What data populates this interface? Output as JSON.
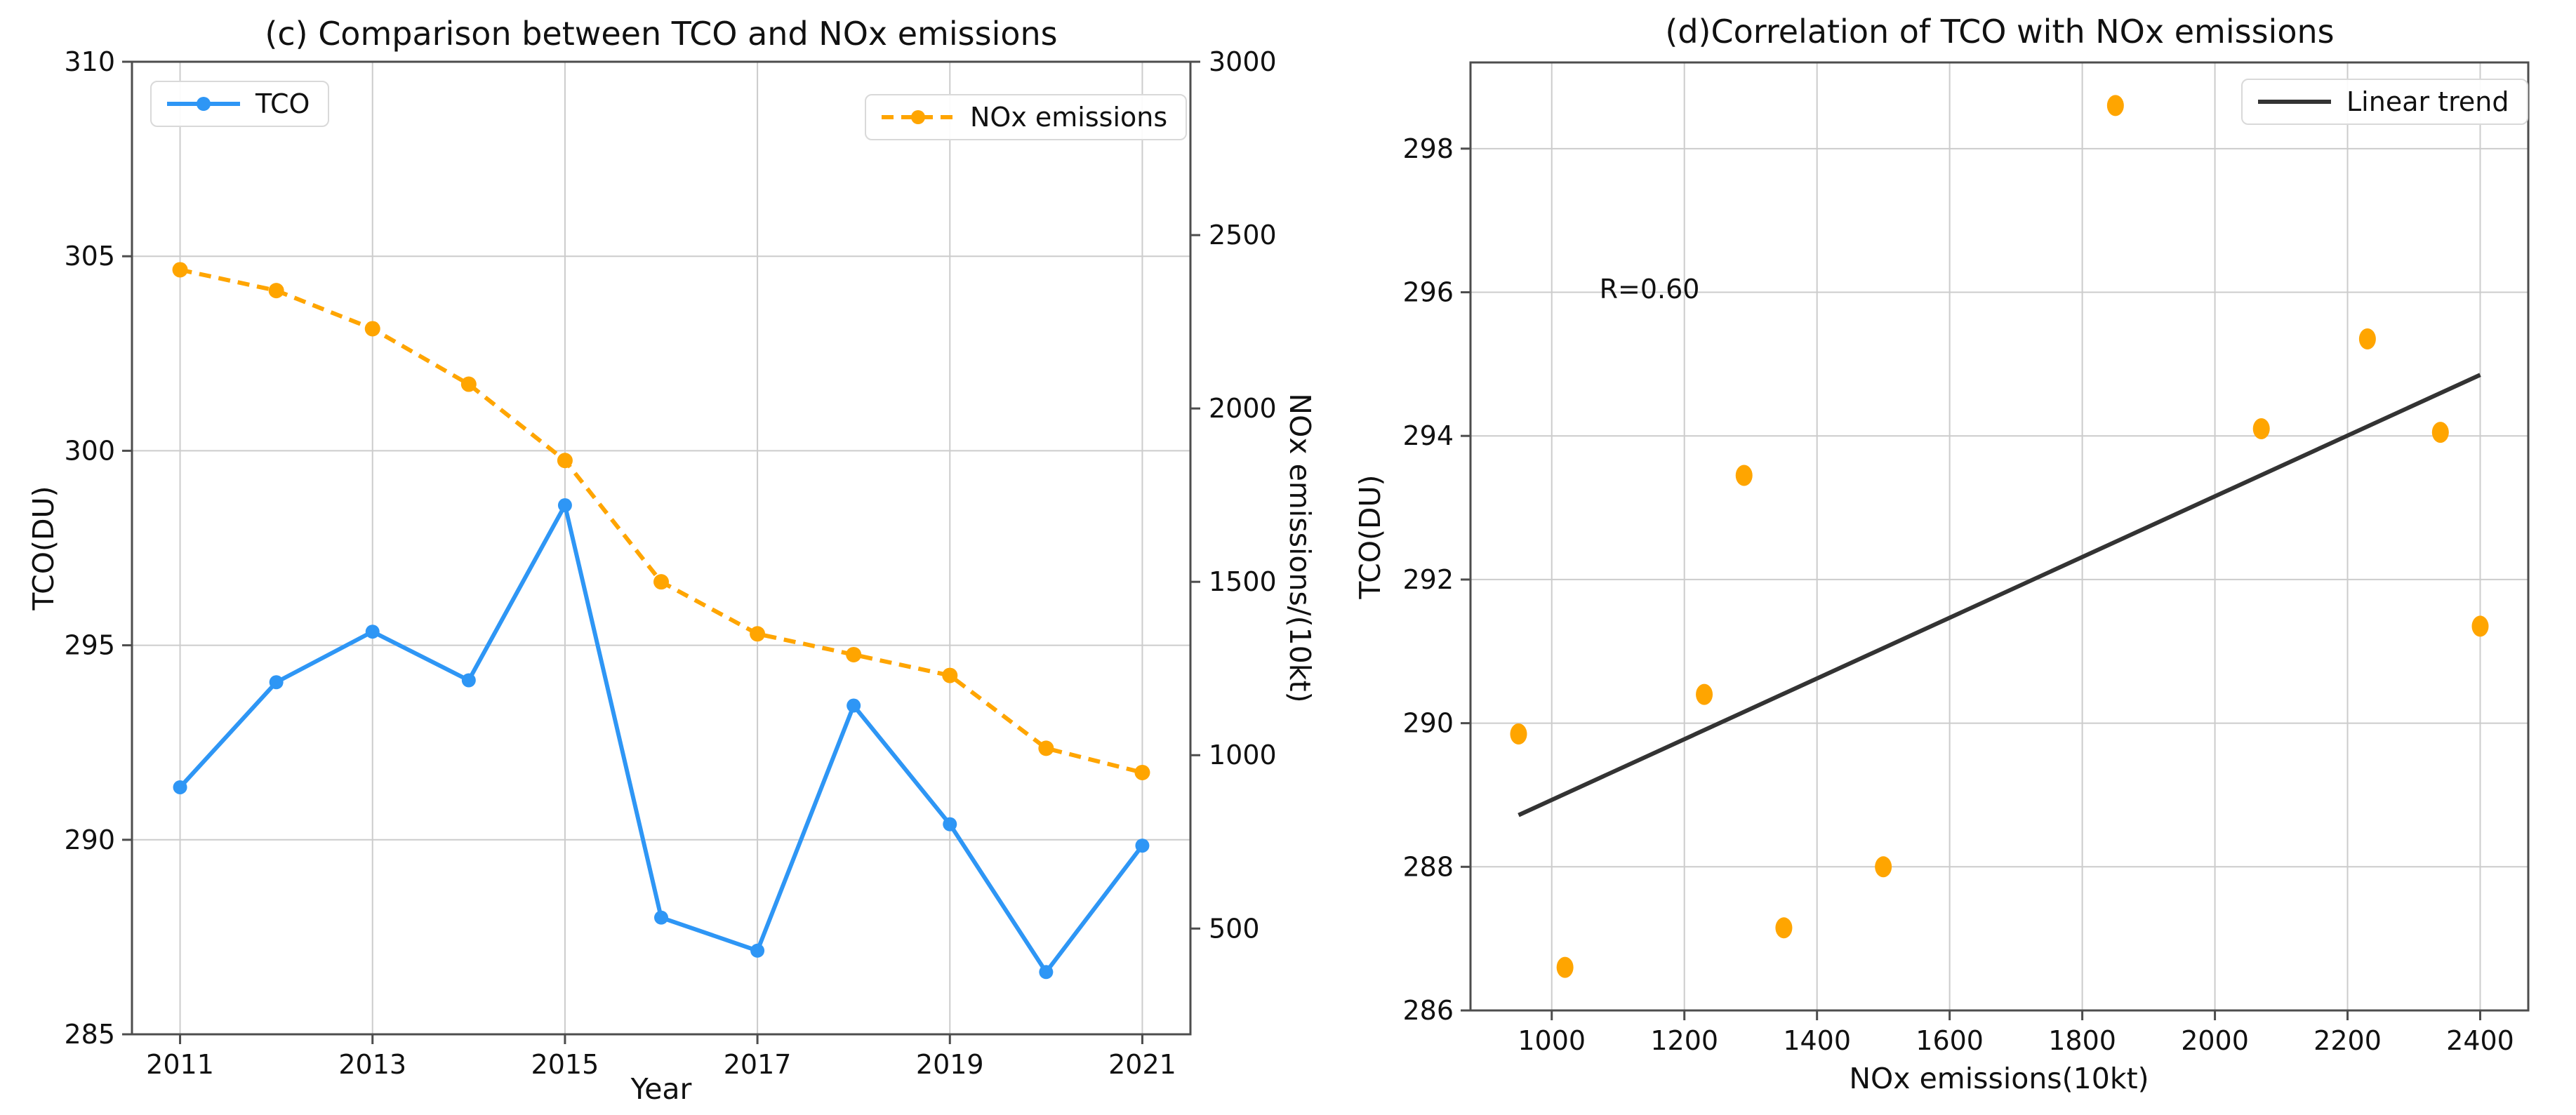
{
  "figure": {
    "background": "#ffffff",
    "colors": {
      "tco_blue": "#2E96F5",
      "nox_orange": "#FFA500",
      "trend_dark": "#333333",
      "grid_gray": "#cccccc",
      "spine_gray": "#4d4d4d",
      "text_black": "#111111"
    }
  },
  "chart_data": [
    {
      "id": "c",
      "type": "line",
      "title": "(c) Comparison between TCO and NOx emissions",
      "xlabel": "Year",
      "ylabel_left": "TCO(DU)",
      "ylabel_right": "NOx emissions/(10kt)",
      "x": [
        2011,
        2012,
        2013,
        2014,
        2015,
        2016,
        2017,
        2018,
        2019,
        2020,
        2021
      ],
      "series": [
        {
          "name": "TCO",
          "axis": "left",
          "style": "solid",
          "color_key": "tco_blue",
          "values": [
            291.35,
            294.05,
            295.35,
            294.1,
            298.6,
            288.0,
            287.15,
            293.45,
            290.4,
            286.6,
            289.85
          ]
        },
        {
          "name": "NOx emissions",
          "axis": "right",
          "style": "dashed",
          "color_key": "nox_orange",
          "values": [
            2400,
            2340,
            2230,
            2070,
            1850,
            1500,
            1350,
            1290,
            1230,
            1020,
            950
          ]
        }
      ],
      "xticks": [
        2011,
        2013,
        2015,
        2017,
        2019,
        2021
      ],
      "yticks_left": [
        285,
        290,
        295,
        300,
        305,
        310
      ],
      "yticks_right": [
        500,
        1000,
        1500,
        2000,
        2500,
        3000
      ],
      "xlim": [
        2010.5,
        2021.5
      ],
      "ylim_left": [
        285,
        310
      ],
      "ylim_right": [
        195,
        3000
      ],
      "grid": true,
      "legend_left": {
        "label": "TCO"
      },
      "legend_right": {
        "label": "NOx emissions"
      }
    },
    {
      "id": "d",
      "type": "scatter",
      "title": "(d)Correlation of TCO with NOx emissions",
      "xlabel": "NOx emissions(10kt)",
      "ylabel": "TCO(DU)",
      "points": [
        [
          2400,
          291.35
        ],
        [
          2340,
          294.05
        ],
        [
          2230,
          295.35
        ],
        [
          2070,
          294.1
        ],
        [
          1850,
          298.6
        ],
        [
          1500,
          288.0
        ],
        [
          1350,
          287.15
        ],
        [
          1290,
          293.45
        ],
        [
          1230,
          290.4
        ],
        [
          1020,
          286.6
        ],
        [
          950,
          289.85
        ]
      ],
      "trend": {
        "label": "Linear trend",
        "x1": 950,
        "y1": 288.72,
        "x2": 2400,
        "y2": 294.85
      },
      "annotation": "R=0.60",
      "xticks": [
        1000,
        1200,
        1400,
        1600,
        1800,
        2000,
        2200,
        2400
      ],
      "yticks": [
        286,
        288,
        290,
        292,
        294,
        296,
        298
      ],
      "xlim": [
        877.5,
        2472.5
      ],
      "ylim": [
        286.0,
        299.2
      ],
      "grid": true
    }
  ]
}
